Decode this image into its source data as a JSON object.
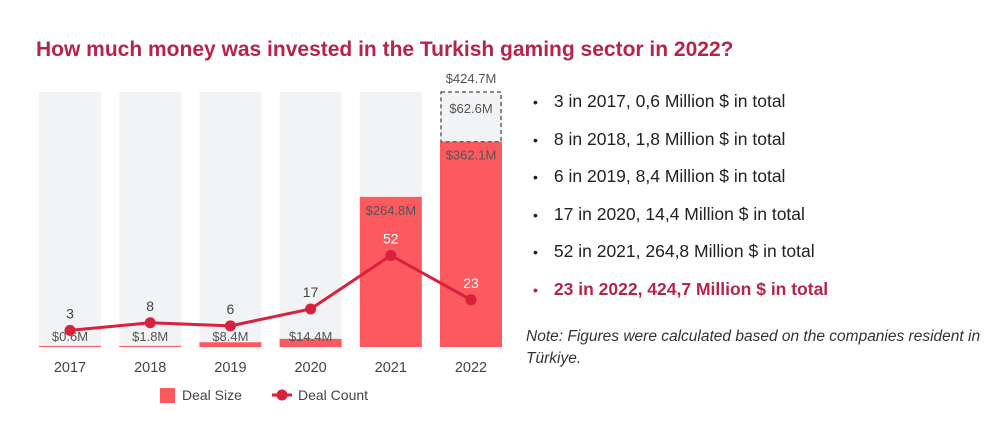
{
  "title": "How much money was invested in the Turkish gaming sector in 2022?",
  "chart_data": {
    "type": "bar",
    "categories": [
      "2017",
      "2018",
      "2019",
      "2020",
      "2021",
      "2022"
    ],
    "series": [
      {
        "name": "Deal Size",
        "kind": "bar",
        "values": [
          0.6,
          1.8,
          8.4,
          14.4,
          264.8,
          362.1
        ],
        "labels": [
          "$0.6M",
          "$1.8M",
          "$8.4M",
          "$14.4M",
          "$264.8M",
          "$362.1M"
        ]
      },
      {
        "name": "Deal Count",
        "kind": "line",
        "values": [
          3,
          8,
          6,
          17,
          52,
          23
        ]
      }
    ],
    "extra_2022": {
      "value": 62.6,
      "label": "$62.6M",
      "total_label": "$424.7M"
    },
    "legend": [
      "Deal Size",
      "Deal Count"
    ],
    "legend_position": "bottom",
    "colors": {
      "bar": "#fc5a5f",
      "background_bar": "#f2f3f5",
      "line": "#d9203d"
    }
  },
  "bullets": [
    "3 in 2017, 0,6 Million $ in total",
    "8 in 2018, 1,8 Million $ in total",
    "6 in 2019, 8,4 Million $ in total",
    "17 in 2020, 14,4 Million $ in total",
    "52 in 2021, 264,8 Million $ in total",
    "23 in 2022, 424,7 Million $ in total"
  ],
  "note": "Note: Figures were calculated based on the companies resident in Türkiye."
}
